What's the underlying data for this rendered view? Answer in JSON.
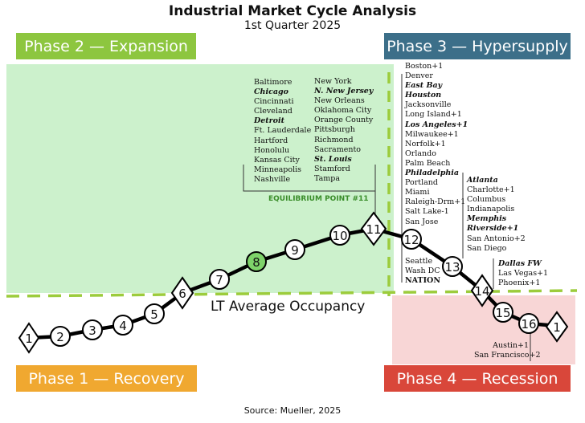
{
  "title": "Industrial Market Cycle Analysis",
  "subtitle": "1st Quarter 2025",
  "phases": {
    "phase1": "Phase 1 — Recovery",
    "phase2": "Phase 2 — Expansion",
    "phase3": "Phase 3 — Hypersupply",
    "phase4": "Phase 4 — Recession"
  },
  "lt_average_label": "LT Average  Occupancy",
  "equilibrium_label": "EQUILIBRIUM POINT #11",
  "source": "Source: Mueller, 2025",
  "cycle_points": [
    "1",
    "2",
    "3",
    "4",
    "5",
    "6",
    "7",
    "8",
    "9",
    "10",
    "11",
    "12",
    "13",
    "14",
    "15",
    "16",
    "1"
  ],
  "highlighted_point": "8",
  "diamond_points": [
    "1",
    "6",
    "11",
    "14",
    "1"
  ],
  "markets": {
    "point11_col1": [
      {
        "text": "Baltimore",
        "style": ""
      },
      {
        "text": "Chicago",
        "style": "bi"
      },
      {
        "text": "Cincinnati",
        "style": ""
      },
      {
        "text": "Cleveland",
        "style": ""
      },
      {
        "text": "Detroit",
        "style": "bi"
      },
      {
        "text": "Ft. Lauderdale",
        "style": ""
      },
      {
        "text": "Hartford",
        "style": ""
      },
      {
        "text": "Honolulu",
        "style": ""
      },
      {
        "text": "Kansas City",
        "style": ""
      },
      {
        "text": "Minneapolis",
        "style": ""
      },
      {
        "text": "Nashville",
        "style": ""
      }
    ],
    "point11_col2": [
      {
        "text": "New York",
        "style": ""
      },
      {
        "text": "N. New Jersey",
        "style": "bi"
      },
      {
        "text": "New Orleans",
        "style": ""
      },
      {
        "text": "Oklahoma City",
        "style": ""
      },
      {
        "text": "Orange County",
        "style": ""
      },
      {
        "text": "Pittsburgh",
        "style": ""
      },
      {
        "text": "Richmond",
        "style": ""
      },
      {
        "text": "Sacramento",
        "style": ""
      },
      {
        "text": "St. Louis",
        "style": "bi"
      },
      {
        "text": "Stamford",
        "style": ""
      },
      {
        "text": "Tampa",
        "style": ""
      }
    ],
    "point12": [
      {
        "text": "Boston+1",
        "style": ""
      },
      {
        "text": "Denver",
        "style": ""
      },
      {
        "text": "East Bay",
        "style": "bi"
      },
      {
        "text": "Houston",
        "style": "bi"
      },
      {
        "text": "Jacksonville",
        "style": ""
      },
      {
        "text": "Long Island+1",
        "style": ""
      },
      {
        "text": "Los Angeles+1",
        "style": "bi"
      },
      {
        "text": "Milwaukee+1",
        "style": ""
      },
      {
        "text": "Norfolk+1",
        "style": ""
      },
      {
        "text": "Orlando",
        "style": ""
      },
      {
        "text": "Palm Beach",
        "style": ""
      },
      {
        "text": "Philadelphia",
        "style": "bi"
      },
      {
        "text": "Portland",
        "style": ""
      },
      {
        "text": "Miami",
        "style": ""
      },
      {
        "text": "Raleigh-Drm+1",
        "style": ""
      },
      {
        "text": "Salt Lake-1",
        "style": ""
      },
      {
        "text": "San Jose",
        "style": ""
      }
    ],
    "point13": [
      {
        "text": "Seattle",
        "style": ""
      },
      {
        "text": "Wash DC",
        "style": ""
      },
      {
        "text": "NATION",
        "style": "b"
      }
    ],
    "point14_upper": [
      {
        "text": "Atlanta",
        "style": "bi"
      },
      {
        "text": "Charlotte+1",
        "style": ""
      },
      {
        "text": "Columbus",
        "style": ""
      },
      {
        "text": "Indianapolis",
        "style": ""
      },
      {
        "text": "Memphis",
        "style": "bi"
      },
      {
        "text": "Riverside+1",
        "style": "bi"
      },
      {
        "text": "San Antonio+2",
        "style": ""
      },
      {
        "text": "San Diego",
        "style": ""
      }
    ],
    "point14_lower": [
      {
        "text": "Dallas FW",
        "style": "bi"
      },
      {
        "text": "Las Vegas+1",
        "style": ""
      },
      {
        "text": "Phoenix+1",
        "style": ""
      }
    ],
    "point16": [
      {
        "text": "Austin+1",
        "style": ""
      },
      {
        "text": "San Francisco+2",
        "style": ""
      }
    ]
  }
}
